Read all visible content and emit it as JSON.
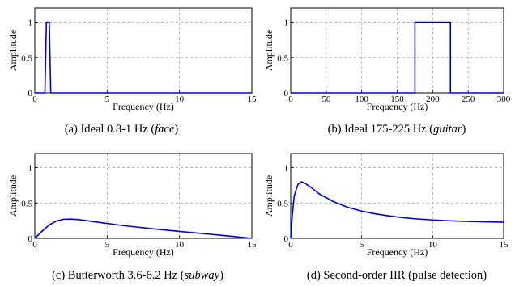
{
  "chart_data": [
    {
      "type": "line",
      "caption": {
        "prefix": "(a)  Ideal 0.8-1 Hz (",
        "emphasis": "face",
        "suffix": ")"
      },
      "xlabel": "Frequency (Hz)",
      "ylabel": "Amplitude",
      "xlim": [
        0,
        15
      ],
      "ylim": [
        0,
        1.2
      ],
      "xticks": [
        0,
        5,
        10,
        15
      ],
      "yticks": [
        0,
        0.5,
        1
      ],
      "ytick_labels": [
        "0",
        "0.5",
        "1"
      ],
      "grid": true,
      "series": [
        {
          "color": "#0000dd",
          "x": [
            0,
            0.7,
            0.8,
            1.0,
            1.1,
            15
          ],
          "y": [
            0,
            0,
            1,
            1,
            0,
            0
          ]
        }
      ]
    },
    {
      "type": "line",
      "caption": {
        "prefix": "(b)  Ideal 175-225 Hz (",
        "emphasis": "guitar",
        "suffix": ")"
      },
      "xlabel": "Frequency (Hz)",
      "ylabel": "Amplitude",
      "xlim": [
        0,
        300
      ],
      "ylim": [
        0,
        1.2
      ],
      "xticks": [
        0,
        50,
        100,
        150,
        200,
        250,
        300
      ],
      "yticks": [
        0,
        0.5,
        1
      ],
      "ytick_labels": [
        "0",
        "0.5",
        "1"
      ],
      "grid": true,
      "series": [
        {
          "color": "#0000dd",
          "x": [
            0,
            175,
            175,
            225,
            225,
            300
          ],
          "y": [
            0,
            0,
            1,
            1,
            0,
            0
          ]
        }
      ]
    },
    {
      "type": "line",
      "caption": {
        "prefix": "(c)  Butterworth 3.6-6.2 Hz (",
        "emphasis": "subway",
        "suffix": ")"
      },
      "xlabel": "Frequency (Hz)",
      "ylabel": "Amplitude",
      "xlim": [
        0,
        15
      ],
      "ylim": [
        0,
        1.2
      ],
      "xticks": [
        0,
        5,
        10,
        15
      ],
      "yticks": [
        0,
        0.5,
        1
      ],
      "ytick_labels": [
        "0",
        "0.5",
        "1"
      ],
      "grid": true,
      "series": [
        {
          "color": "#0000dd",
          "x": [
            0,
            0.5,
            1,
            1.5,
            2,
            2.5,
            3,
            3.5,
            4,
            5,
            6,
            7,
            8,
            9,
            10,
            11,
            12,
            13,
            14,
            15
          ],
          "y": [
            0,
            0.1,
            0.19,
            0.245,
            0.27,
            0.272,
            0.265,
            0.252,
            0.238,
            0.21,
            0.183,
            0.16,
            0.138,
            0.118,
            0.098,
            0.079,
            0.06,
            0.041,
            0.021,
            0
          ]
        }
      ]
    },
    {
      "type": "line",
      "caption": {
        "prefix": "(d)  Second-order IIR (pulse detection)",
        "emphasis": "",
        "suffix": ""
      },
      "xlabel": "Frequency (Hz)",
      "ylabel": "Amplitude",
      "xlim": [
        0,
        15
      ],
      "ylim": [
        0,
        1.2
      ],
      "xticks": [
        0,
        5,
        10,
        15
      ],
      "yticks": [
        0,
        0.5,
        1
      ],
      "ytick_labels": [
        "0",
        "0.5",
        "1"
      ],
      "grid": true,
      "series": [
        {
          "color": "#0000dd",
          "x": [
            0,
            0.1,
            0.25,
            0.5,
            0.75,
            1,
            1.5,
            2,
            3,
            4,
            5,
            6,
            7,
            8,
            9,
            10,
            11,
            12,
            13,
            14,
            15
          ],
          "y": [
            0,
            0.3,
            0.6,
            0.76,
            0.8,
            0.78,
            0.71,
            0.63,
            0.52,
            0.44,
            0.385,
            0.345,
            0.315,
            0.29,
            0.273,
            0.26,
            0.25,
            0.242,
            0.236,
            0.232,
            0.228
          ]
        }
      ]
    }
  ]
}
